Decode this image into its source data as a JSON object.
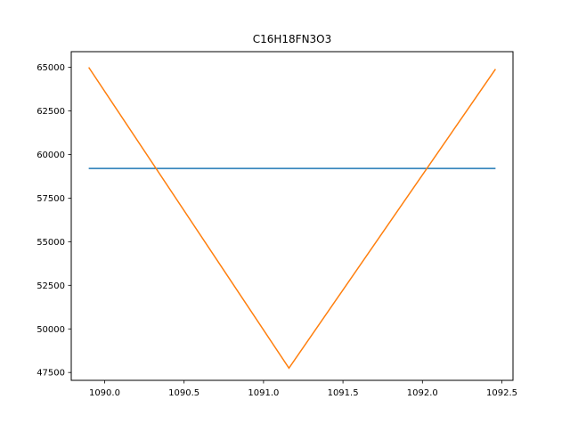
{
  "chart_data": {
    "type": "line",
    "title": "C16H18FN3O3",
    "xlabel": "",
    "ylabel": "",
    "xlim": [
      1089.79,
      1092.57
    ],
    "ylim": [
      47050,
      65900
    ],
    "grid": false,
    "legend": "none",
    "x_ticks": [
      1090.0,
      1090.5,
      1091.0,
      1091.5,
      1092.0,
      1092.5
    ],
    "x_tick_labels": [
      "1090.0",
      "1090.5",
      "1091.0",
      "1091.5",
      "1092.0",
      "1092.5"
    ],
    "y_ticks": [
      47500,
      50000,
      52500,
      55000,
      57500,
      60000,
      62500,
      65000
    ],
    "y_tick_labels": [
      "47500",
      "50000",
      "52500",
      "55000",
      "57500",
      "60000",
      "62500",
      "65000"
    ],
    "series": [
      {
        "color": "#1f77b4",
        "x": [
          1089.9,
          1092.46
        ],
        "y": [
          59200,
          59200
        ]
      },
      {
        "color": "#ff7f0e",
        "x": [
          1089.9,
          1091.16,
          1092.46
        ],
        "y": [
          65000,
          47750,
          64900
        ]
      }
    ]
  }
}
